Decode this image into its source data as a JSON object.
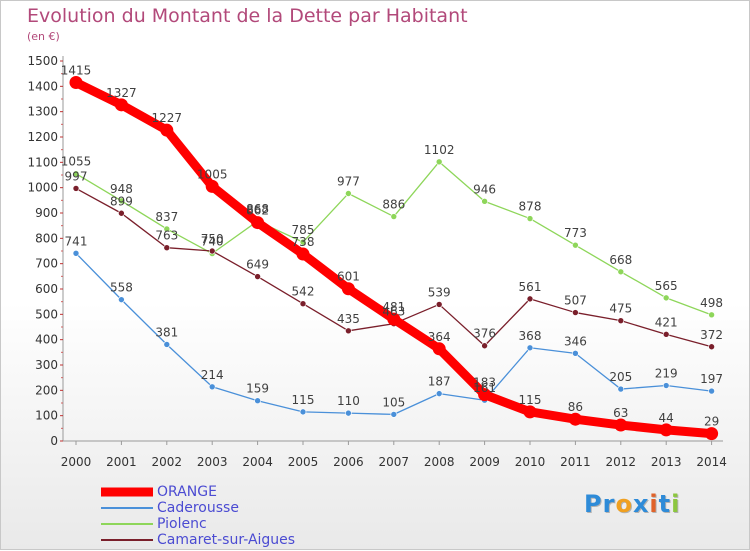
{
  "title": "Evolution du Montant de la Dette par Habitant",
  "unit": "(en €)",
  "brand": {
    "text": "Proxiti",
    "letters": [
      {
        "ch": "P",
        "color": "#2e8bd8"
      },
      {
        "ch": "r",
        "color": "#2e8bd8"
      },
      {
        "ch": "o",
        "color": "#f0a020"
      },
      {
        "ch": "x",
        "color": "#2e8bd8"
      },
      {
        "ch": "i",
        "color": "#e0632a"
      },
      {
        "ch": "t",
        "color": "#2e8bd8"
      },
      {
        "ch": "i",
        "color": "#8cc63f"
      }
    ]
  },
  "chart_data": {
    "type": "line",
    "title": "Evolution du Montant de la Dette par Habitant",
    "ylabel": "(en €)",
    "xlabel": "",
    "x": [
      "2000",
      "2001",
      "2002",
      "2003",
      "2004",
      "2005",
      "2006",
      "2007",
      "2008",
      "2009",
      "2010",
      "2011",
      "2012",
      "2013",
      "2014"
    ],
    "ylim": [
      0,
      1500
    ],
    "yticks": [
      0,
      100,
      200,
      300,
      400,
      500,
      600,
      700,
      800,
      900,
      1000,
      1100,
      1200,
      1300,
      1400,
      1500
    ],
    "grid": false,
    "legend_position": "bottom-left",
    "series": [
      {
        "name": "ORANGE",
        "color": "#ff0000",
        "emphasis": true,
        "values": [
          1415,
          1327,
          1227,
          1005,
          862,
          738,
          601,
          481,
          364,
          183,
          115,
          86,
          63,
          44,
          29
        ]
      },
      {
        "name": "Caderousse",
        "color": "#4a90d9",
        "emphasis": false,
        "values": [
          741,
          558,
          381,
          214,
          159,
          115,
          110,
          105,
          187,
          161,
          368,
          346,
          205,
          219,
          197
        ]
      },
      {
        "name": "Piolenc",
        "color": "#8ed65a",
        "emphasis": false,
        "values": [
          1055,
          948,
          837,
          740,
          868,
          785,
          977,
          886,
          1102,
          946,
          878,
          773,
          668,
          565,
          498
        ]
      },
      {
        "name": "Camaret-sur-Aigues",
        "color": "#7a1f2b",
        "emphasis": false,
        "values": [
          997,
          899,
          763,
          750,
          649,
          542,
          435,
          463,
          539,
          376,
          561,
          507,
          475,
          421,
          372
        ]
      }
    ]
  }
}
